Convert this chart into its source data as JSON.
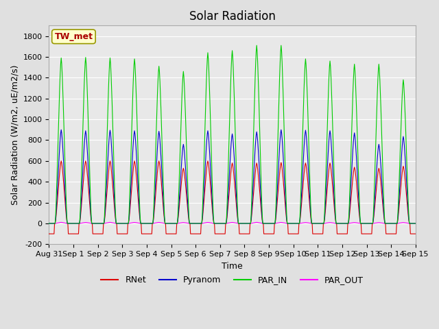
{
  "title": "Solar Radiation",
  "ylabel": "Solar Radiation (W/m2, uE/m2/s)",
  "xlabel": "Time",
  "ylim": [
    -200,
    1900
  ],
  "yticks": [
    -200,
    0,
    200,
    400,
    600,
    800,
    1000,
    1200,
    1400,
    1600,
    1800
  ],
  "fig_bg_color": "#e0e0e0",
  "plot_bg_color": "#e8e8e8",
  "legend_labels": [
    "RNet",
    "Pyranom",
    "PAR_IN",
    "PAR_OUT"
  ],
  "legend_colors": [
    "#dd0000",
    "#0000cc",
    "#00cc00",
    "#ff00ff"
  ],
  "station_label": "TW_met",
  "station_box_color": "#ffffcc",
  "station_text_color": "#aa0000",
  "title_fontsize": 12,
  "label_fontsize": 9,
  "tick_fontsize": 8,
  "grid_color": "#ffffff",
  "par_in_peaks": [
    1590,
    1595,
    1590,
    1580,
    1510,
    1460,
    1640,
    1660,
    1710,
    1710,
    1580,
    1560,
    1530,
    1530,
    1380
  ],
  "pyranom_peaks": [
    900,
    890,
    895,
    890,
    885,
    760,
    890,
    860,
    880,
    900,
    895,
    890,
    870,
    760,
    835
  ],
  "rnet_peaks": [
    600,
    600,
    600,
    600,
    600,
    530,
    600,
    580,
    580,
    585,
    580,
    580,
    540,
    530,
    550
  ],
  "par_out_peaks": [
    80,
    70,
    80,
    75,
    75,
    65,
    75,
    75,
    80,
    75,
    65,
    65,
    65,
    60,
    65
  ],
  "rnet_night": -100
}
